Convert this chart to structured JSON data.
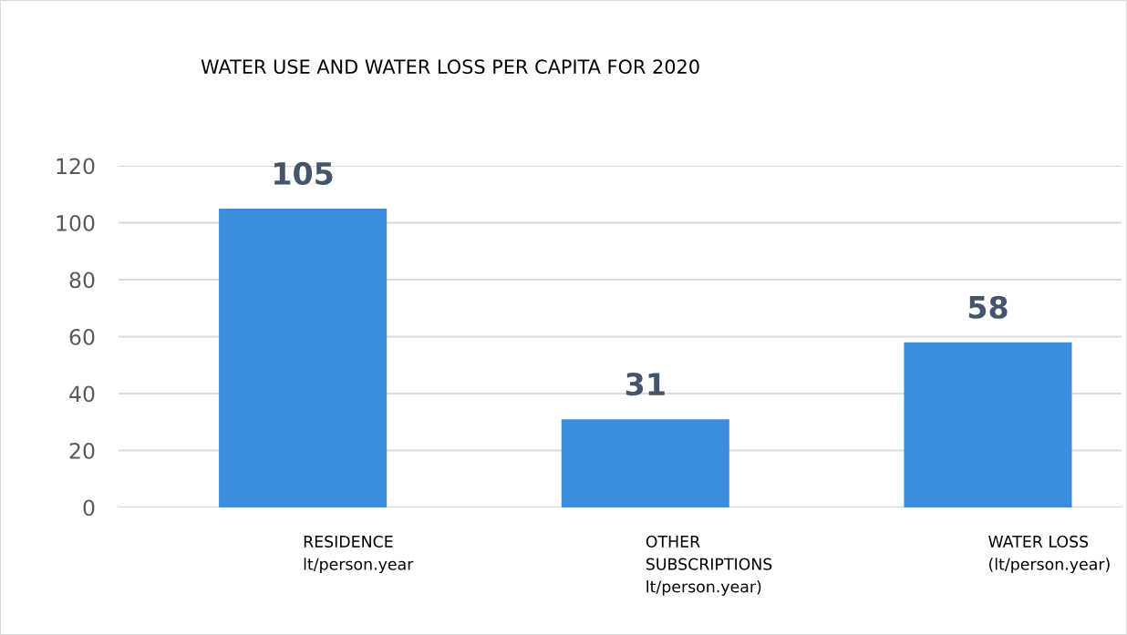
{
  "chart_data": {
    "type": "bar",
    "title": "WATER USE AND WATER LOSS PER CAPITA FOR 2020",
    "categories": [
      "RESIDENCE\nlt/person.year",
      "OTHER\nSUBSCRIPTIONS\nlt/person.year)",
      "WATER LOSS\n(lt/person.year)"
    ],
    "values": [
      105,
      31,
      58
    ],
    "color": "#3b8ede",
    "ylim": [
      0,
      120
    ],
    "yticks": [
      0,
      20,
      40,
      60,
      80,
      100,
      120
    ],
    "grid": "y",
    "data_labels": true,
    "legend": false
  }
}
